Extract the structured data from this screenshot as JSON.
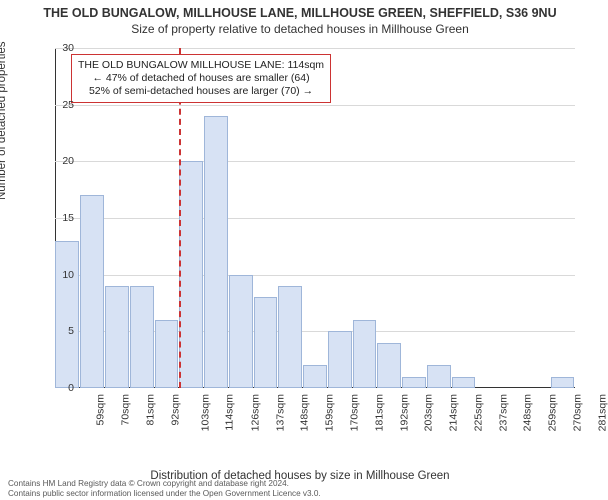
{
  "titles": {
    "main": "THE OLD BUNGALOW, MILLHOUSE LANE, MILLHOUSE GREEN, SHEFFIELD, S36 9NU",
    "sub": "Size of property relative to detached houses in Millhouse Green"
  },
  "axes": {
    "ylabel": "Number of detached properties",
    "xlabel": "Distribution of detached houses by size in Millhouse Green",
    "ylim": [
      0,
      30
    ],
    "ytick_step": 5,
    "grid_color": "#d9d9d9",
    "axis_color": "#333333"
  },
  "chart": {
    "type": "bar",
    "categories": [
      "59sqm",
      "70sqm",
      "81sqm",
      "92sqm",
      "103sqm",
      "114sqm",
      "126sqm",
      "137sqm",
      "148sqm",
      "159sqm",
      "170sqm",
      "181sqm",
      "192sqm",
      "203sqm",
      "214sqm",
      "225sqm",
      "237sqm",
      "248sqm",
      "259sqm",
      "270sqm",
      "281sqm"
    ],
    "values": [
      13,
      17,
      9,
      9,
      6,
      20,
      24,
      10,
      8,
      9,
      2,
      5,
      6,
      4,
      1,
      2,
      1,
      0,
      0,
      0,
      1
    ],
    "bar_fill": "#d7e2f4",
    "bar_border": "#9fb6d9",
    "bar_width_ratio": 0.96,
    "background_color": "#ffffff"
  },
  "reference_line": {
    "position_category_index": 5,
    "color": "#cc3333"
  },
  "annotation": {
    "line1": "THE OLD BUNGALOW MILLHOUSE LANE: 114sqm",
    "line2": "← 47% of detached of houses are smaller (64)",
    "line3": "52% of semi-detached houses are larger (70) →",
    "border_color": "#cc3333",
    "bg_color": "#ffffff"
  },
  "footer": {
    "line1": "Contains HM Land Registry data © Crown copyright and database right 2024.",
    "line2": "Contains public sector information licensed under the Open Government Licence v3.0."
  }
}
